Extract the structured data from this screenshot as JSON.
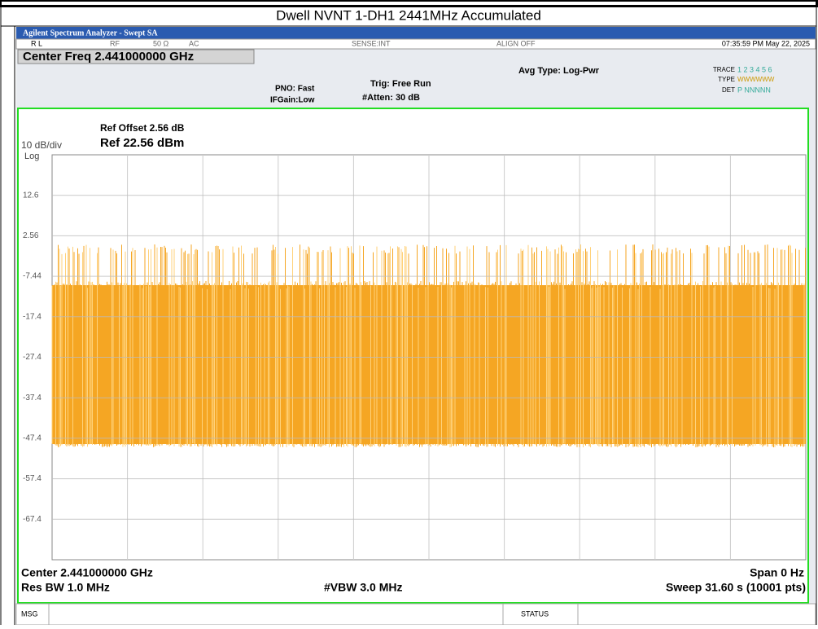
{
  "report": {
    "caption": "Dwell NVNT 1-DH1 2441MHz Accumulated"
  },
  "analyzer": {
    "window_title": "Agilent Spectrum Analyzer - Swept SA",
    "status": {
      "rl": "R L",
      "rf": "RF",
      "imp": "50 Ω",
      "ac": "AC",
      "sense": "SENSE:INT",
      "align": "ALIGN OFF",
      "time": "07:35:59 PM May 22, 2025"
    },
    "center_freq": "Center Freq 2.441000000 GHz",
    "pno": "PNO: Fast",
    "ifgain": "IFGain:Low",
    "trig": "Trig: Free Run",
    "atten": "#Atten: 30 dB",
    "avg_type": "Avg Type: Log-Pwr",
    "trace_label": "TRACE",
    "trace_nums": "1 2 3 4 5 6",
    "type_label": "TYPE",
    "type_val": "WWWWWW",
    "det_label": "DET",
    "det_val": "P NNNNN",
    "ref_offset": "Ref Offset 2.56 dB",
    "scale": "10 dB/div",
    "ref_level": "Ref 22.56 dBm",
    "log": "Log",
    "center": "Center 2.441000000 GHz",
    "span": "Span 0 Hz",
    "rbw": "Res BW 1.0 MHz",
    "vbw": "#VBW 3.0 MHz",
    "sweep": "Sweep  31.60 s (10001 pts)",
    "msg": "MSG",
    "status_btn": "STATUS"
  },
  "chart_data": {
    "type": "line",
    "ylim": [
      -77.44,
      22.56
    ],
    "yticks": [
      {
        "value": 12.56,
        "label": "12.6"
      },
      2.56,
      -7.44,
      {
        "value": -17.44,
        "label": "-17.4"
      },
      {
        "value": -27.44,
        "label": "-27.4"
      },
      {
        "value": -37.44,
        "label": "-37.4"
      },
      {
        "value": -47.44,
        "label": "-47.4"
      },
      {
        "value": -57.44,
        "label": "-57.4"
      },
      {
        "value": -67.44,
        "label": "-67.4"
      }
    ],
    "grid": true,
    "color": "#f5a623"
  }
}
